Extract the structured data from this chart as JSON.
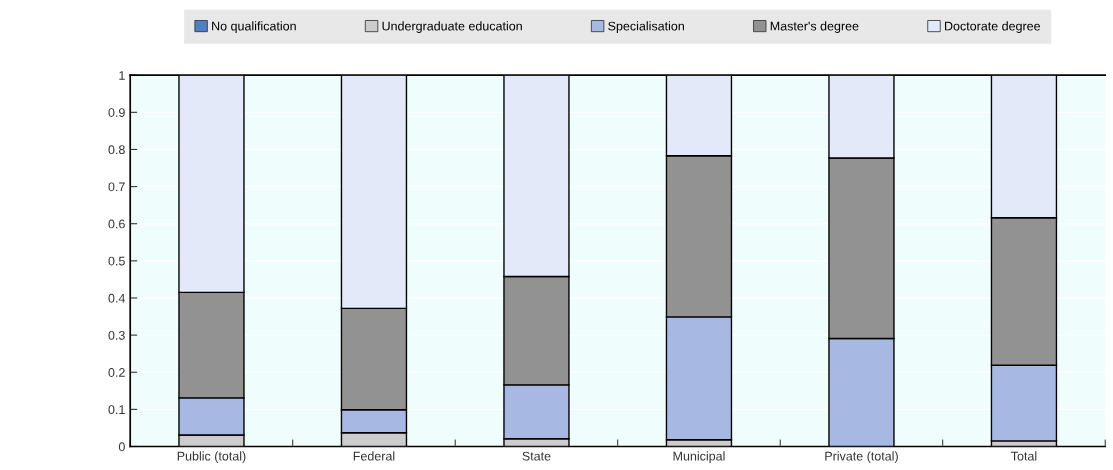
{
  "chart_data": {
    "type": "bar",
    "stacked": true,
    "categories": [
      "Public (total)",
      "Federal",
      "State",
      "Municipal",
      "Private (total)",
      "Total"
    ],
    "series": [
      {
        "name": "No qualification",
        "color": "#4f7fc4",
        "values": [
          0,
          0,
          0,
          0,
          0,
          0
        ]
      },
      {
        "name": "Undergraduate education",
        "color": "#cccccc",
        "values": [
          0.031,
          0.037,
          0.021,
          0.018,
          0,
          0.015
        ]
      },
      {
        "name": "Specialisation",
        "color": "#a7b8e2",
        "values": [
          0.1,
          0.062,
          0.145,
          0.331,
          0.291,
          0.204
        ]
      },
      {
        "name": "Master's degree",
        "color": "#929292",
        "values": [
          0.284,
          0.273,
          0.292,
          0.434,
          0.486,
          0.397
        ]
      },
      {
        "name": "Doctorate degree",
        "color": "#e3e9f8",
        "values": [
          0.585,
          0.628,
          0.542,
          0.217,
          0.223,
          0.384
        ]
      }
    ],
    "ylim": [
      0,
      1
    ],
    "yticks": [
      0,
      0.1,
      0.2,
      0.3,
      0.4,
      0.5,
      0.6,
      0.7,
      0.8,
      0.9,
      1
    ],
    "grid": true,
    "legend": "top"
  }
}
